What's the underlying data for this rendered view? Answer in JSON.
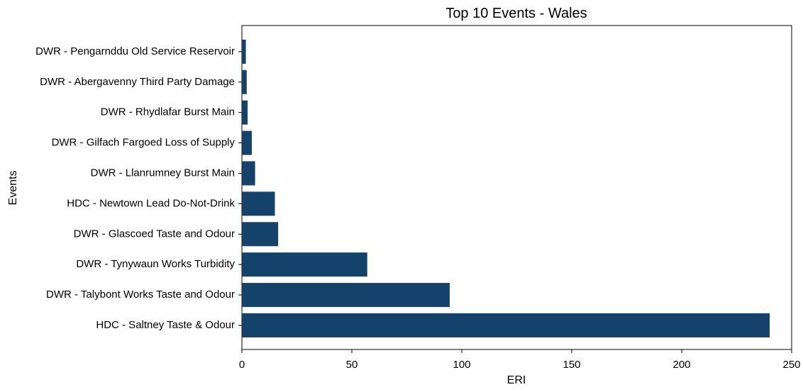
{
  "chart_data": {
    "type": "bar",
    "orientation": "horizontal",
    "title": "Top 10 Events - Wales",
    "xlabel": "ERI",
    "ylabel": "Events",
    "xlim": [
      0,
      250
    ],
    "xticks": [
      0,
      50,
      100,
      150,
      200,
      250
    ],
    "grid": false,
    "legend": "none",
    "categories": [
      "DWR - Pengarnddu Old Service Reservoir",
      "DWR - Abergavenny Third Party Damage",
      "DWR - Rhydlafar Burst Main",
      "DWR - Gilfach Fargoed Loss of Supply",
      "DWR - Llanrumney Burst Main",
      "HDC - Newtown Lead Do-Not-Drink",
      "DWR - Glascoed Taste and Odour",
      "DWR - Tynywaun Works Turbidity",
      "DWR - Talybont Works Taste and Odour",
      "HDC - Saltney Taste & Odour"
    ],
    "values": [
      1.8,
      2.2,
      2.6,
      4.5,
      6.0,
      15.0,
      16.5,
      57.0,
      94.5,
      240.0
    ],
    "bar_color": "#14426b"
  }
}
